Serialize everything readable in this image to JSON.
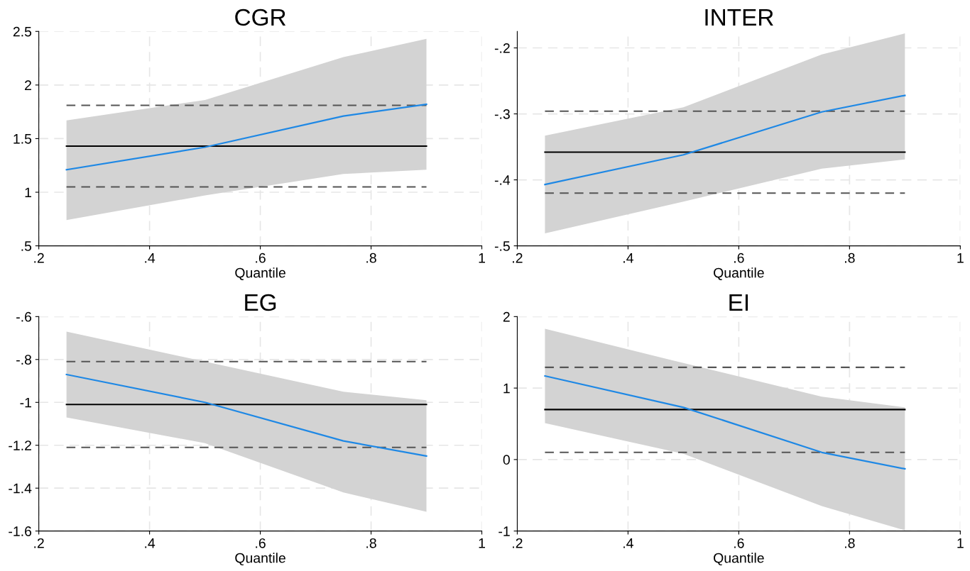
{
  "chart_data": [
    {
      "type": "line",
      "title": "CGR",
      "xlabel": "Quantile",
      "xlim": [
        0.2,
        1
      ],
      "xticks": [
        {
          "value": 0.2,
          "label": ".2"
        },
        {
          "value": 0.4,
          "label": ".4"
        },
        {
          "value": 0.6,
          "label": ".6"
        },
        {
          "value": 0.8,
          "label": ".8"
        },
        1
      ],
      "ylim": [
        0.5,
        2.5
      ],
      "yticks": [
        {
          "value": 0.5,
          "label": ".5"
        },
        1,
        {
          "value": 1.5,
          "label": "1.5"
        },
        2,
        {
          "value": 2.5,
          "label": "2.5"
        }
      ],
      "grid": true,
      "line_style": "solid",
      "marker": "none",
      "series": [
        {
          "color": "#1e88e5",
          "x": [
            0.25,
            0.5,
            0.75,
            0.9
          ],
          "values": [
            1.21,
            1.42,
            1.71,
            1.82
          ],
          "lower": [
            0.74,
            0.97,
            1.17,
            1.21
          ],
          "upper": [
            1.67,
            1.86,
            2.26,
            2.43
          ]
        }
      ],
      "ref_lines": [
        {
          "axis": "y",
          "value": 1.43,
          "color": "#000000",
          "line_style": "solid"
        },
        {
          "axis": "y",
          "value": 1.81,
          "color": "#555555",
          "line_style": "dashed"
        },
        {
          "axis": "y",
          "value": 1.05,
          "color": "#555555",
          "line_style": "dashed"
        }
      ]
    },
    {
      "type": "line",
      "title": "INTER",
      "xlabel": "Quantile",
      "xlim": [
        0.2,
        1
      ],
      "xticks": [
        {
          "value": 0.2,
          "label": ".2"
        },
        {
          "value": 0.4,
          "label": ".4"
        },
        {
          "value": 0.6,
          "label": ".6"
        },
        {
          "value": 0.8,
          "label": ".8"
        },
        1
      ],
      "ylim": [
        -0.5,
        -0.175
      ],
      "yticks": [
        {
          "value": -0.5,
          "label": "-.5"
        },
        {
          "value": -0.4,
          "label": "-.4"
        },
        {
          "value": -0.3,
          "label": "-.3"
        },
        {
          "value": -0.2,
          "label": "-.2"
        }
      ],
      "grid": true,
      "line_style": "solid",
      "marker": "none",
      "series": [
        {
          "color": "#1e88e5",
          "x": [
            0.25,
            0.5,
            0.75,
            0.9
          ],
          "values": [
            -0.407,
            -0.362,
            -0.297,
            -0.272
          ],
          "lower": [
            -0.481,
            -0.433,
            -0.383,
            -0.369
          ],
          "upper": [
            -0.333,
            -0.29,
            -0.21,
            -0.178
          ]
        }
      ],
      "ref_lines": [
        {
          "axis": "y",
          "value": -0.358,
          "color": "#000000",
          "line_style": "solid"
        },
        {
          "axis": "y",
          "value": -0.296,
          "color": "#555555",
          "line_style": "dashed"
        },
        {
          "axis": "y",
          "value": -0.42,
          "color": "#555555",
          "line_style": "dashed"
        }
      ]
    },
    {
      "type": "line",
      "title": "EG",
      "xlabel": "Quantile",
      "xlim": [
        0.2,
        1
      ],
      "xticks": [
        {
          "value": 0.2,
          "label": ".2"
        },
        {
          "value": 0.4,
          "label": ".4"
        },
        {
          "value": 0.6,
          "label": ".6"
        },
        {
          "value": 0.8,
          "label": ".8"
        },
        1
      ],
      "ylim": [
        -1.6,
        -0.6
      ],
      "yticks": [
        {
          "value": -1.6,
          "label": "-1.6"
        },
        {
          "value": -1.4,
          "label": "-1.4"
        },
        {
          "value": -1.2,
          "label": "-1.2"
        },
        -1,
        {
          "value": -0.8,
          "label": "-.8"
        },
        {
          "value": -0.6,
          "label": "-.6"
        }
      ],
      "grid": true,
      "line_style": "solid",
      "marker": "none",
      "series": [
        {
          "color": "#1e88e5",
          "x": [
            0.25,
            0.5,
            0.75,
            0.9
          ],
          "values": [
            -0.87,
            -1.0,
            -1.18,
            -1.25
          ],
          "lower": [
            -1.07,
            -1.19,
            -1.42,
            -1.51
          ],
          "upper": [
            -0.67,
            -0.81,
            -0.95,
            -0.99
          ]
        }
      ],
      "ref_lines": [
        {
          "axis": "y",
          "value": -1.01,
          "color": "#000000",
          "line_style": "solid"
        },
        {
          "axis": "y",
          "value": -0.81,
          "color": "#555555",
          "line_style": "dashed"
        },
        {
          "axis": "y",
          "value": -1.21,
          "color": "#555555",
          "line_style": "dashed"
        }
      ]
    },
    {
      "type": "line",
      "title": "EI",
      "xlabel": "Quantile",
      "xlim": [
        0.2,
        1
      ],
      "xticks": [
        {
          "value": 0.2,
          "label": ".2"
        },
        {
          "value": 0.4,
          "label": ".4"
        },
        {
          "value": 0.6,
          "label": ".6"
        },
        {
          "value": 0.8,
          "label": ".8"
        },
        1
      ],
      "ylim": [
        -1,
        2
      ],
      "yticks": [
        -1,
        0,
        1,
        2
      ],
      "grid": true,
      "line_style": "solid",
      "marker": "none",
      "series": [
        {
          "color": "#1e88e5",
          "x": [
            0.25,
            0.5,
            0.75,
            0.9
          ],
          "values": [
            1.17,
            0.73,
            0.1,
            -0.13
          ],
          "lower": [
            0.51,
            0.08,
            -0.65,
            -0.99
          ],
          "upper": [
            1.83,
            1.35,
            0.88,
            0.73
          ]
        }
      ],
      "ref_lines": [
        {
          "axis": "y",
          "value": 0.7,
          "color": "#000000",
          "line_style": "solid"
        },
        {
          "axis": "y",
          "value": 1.29,
          "color": "#555555",
          "line_style": "dashed"
        },
        {
          "axis": "y",
          "value": 0.1,
          "color": "#555555",
          "line_style": "dashed"
        }
      ]
    }
  ]
}
